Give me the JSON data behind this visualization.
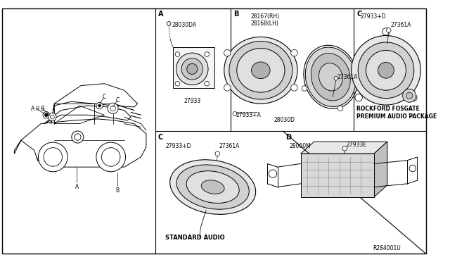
{
  "bg": "#ffffff",
  "line_color": "#000000",
  "text_color": "#000000",
  "ref": "R284001U",
  "vx1": 232,
  "vx2": 423,
  "hy": 186,
  "labels": {
    "sec_A": "A",
    "sec_B": "B",
    "sec_C_top": "C",
    "sec_C_bot": "C",
    "sec_D": "D",
    "A_p1": "28030DA",
    "A_p2": "27933",
    "B_p1": "28167(RH)",
    "B_p2": "28168(LH)",
    "B_p3": "27361A",
    "B_p4": "27933+A",
    "B_p5": "28030D",
    "C_top_p1": "27933+D",
    "C_top_p2": "27361A",
    "C_top_t1": "ROCKFORD FOSGATE",
    "C_top_t2": "PREMIUM AUDIO PACKAGE",
    "C_bot_p1": "27933+D",
    "C_bot_p2": "27361A",
    "C_bot_t": "STANDARD AUDIO",
    "D_p1": "28060M",
    "D_p2": "27933E",
    "car_AIB": "A II B",
    "car_A": "A",
    "car_B": "B",
    "car_C1": "C",
    "car_C2": "C"
  }
}
